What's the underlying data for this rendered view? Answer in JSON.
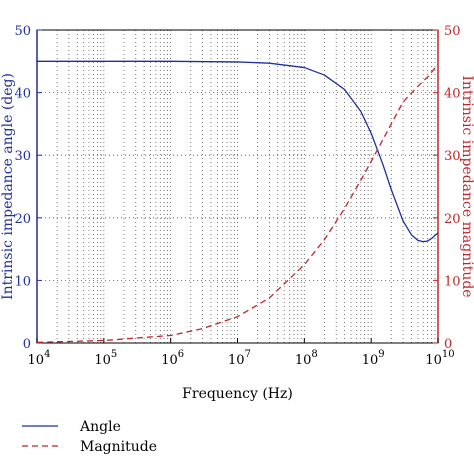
{
  "chart_data": {
    "type": "line",
    "xlabel": "Frequency (Hz)",
    "ylabel_left": "Intrinsic impedance angle (deg)",
    "ylabel_right": "Intrinsic impedance magnitude",
    "x_scale": "log",
    "xlim": [
      10000,
      10000000000
    ],
    "ylim_left": [
      0,
      50
    ],
    "ylim_right": [
      0,
      50
    ],
    "x_ticks": [
      {
        "base": "10",
        "exp": "4"
      },
      {
        "base": "10",
        "exp": "5"
      },
      {
        "base": "10",
        "exp": "6"
      },
      {
        "base": "10",
        "exp": "7"
      },
      {
        "base": "10",
        "exp": "8"
      },
      {
        "base": "10",
        "exp": "9"
      },
      {
        "base": "10",
        "exp": "10"
      }
    ],
    "y_ticks_left": [
      "0",
      "10",
      "20",
      "30",
      "40",
      "50"
    ],
    "y_ticks_right": [
      "0",
      "10",
      "20",
      "30",
      "40",
      "50"
    ],
    "grid": true,
    "legend_position": "bottom-left, below plot",
    "colors": {
      "angle": "#1f2f9f",
      "magnitude": "#c0262a",
      "left_axis": "#1f2f9f",
      "right_axis": "#c0262a"
    },
    "series": [
      {
        "name": "Angle",
        "axis": "left",
        "style": "solid",
        "x": [
          10000,
          100000,
          1000000,
          10000000,
          30000000,
          100000000,
          200000000,
          400000000,
          700000000,
          1000000000,
          1500000000,
          2000000000,
          3000000000,
          4000000000,
          5000000000,
          6000000000,
          7000000000,
          8000000000,
          10000000000
        ],
        "y": [
          45,
          45,
          45,
          44.9,
          44.7,
          44.0,
          42.8,
          40.5,
          37.0,
          33.5,
          28.5,
          24.5,
          19.5,
          17.3,
          16.4,
          16.2,
          16.3,
          16.7,
          17.6
        ]
      },
      {
        "name": "Magnitude",
        "axis": "right",
        "style": "dashed",
        "x": [
          10000,
          100000,
          1000000,
          3000000,
          10000000,
          30000000,
          100000000,
          200000000,
          400000000,
          700000000,
          1000000000,
          2000000000,
          3000000000,
          5000000000,
          7000000000,
          10000000000
        ],
        "y": [
          0.1,
          0.4,
          1.2,
          2.3,
          4.2,
          7.2,
          12.5,
          16.5,
          21.5,
          26.0,
          29.0,
          35.0,
          38.5,
          41.0,
          42.5,
          44.5
        ]
      }
    ]
  }
}
